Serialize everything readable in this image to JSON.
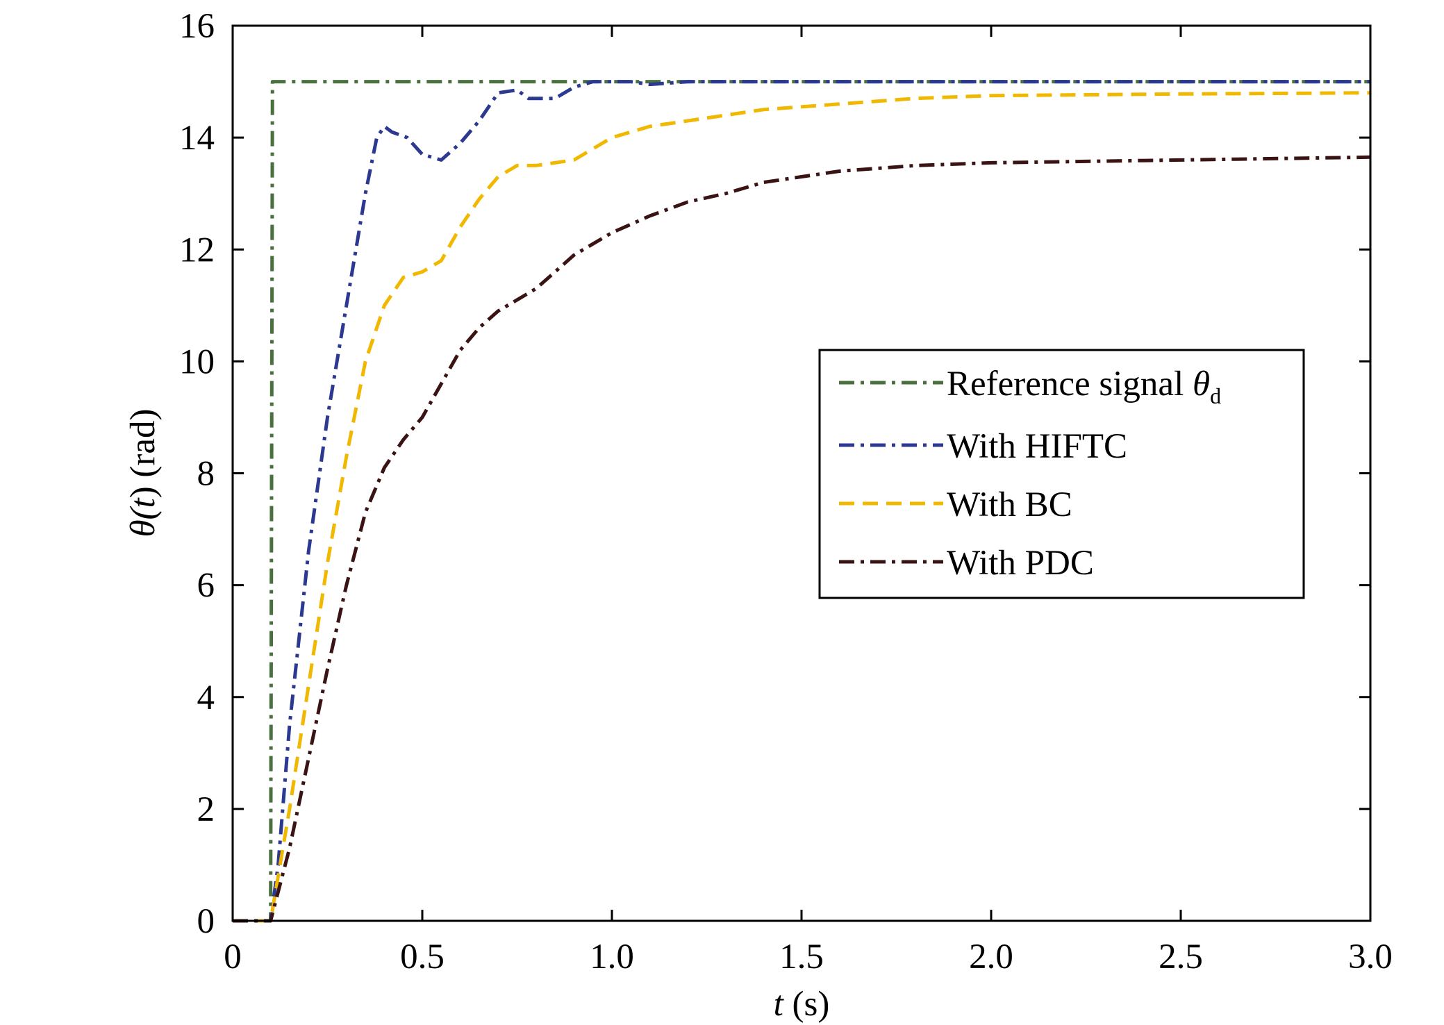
{
  "chart_data": {
    "type": "line",
    "xlabel": {
      "symbol": "t",
      "unit": " (s)"
    },
    "ylabel": {
      "prefix": "θ(",
      "symbol": "t",
      "suffix": ") (rad)"
    },
    "xlim": [
      0,
      3.0
    ],
    "ylim": [
      0,
      16
    ],
    "x_ticks": [
      "0",
      "0.5",
      "1.0",
      "1.5",
      "2.0",
      "2.5",
      "3.0"
    ],
    "y_ticks": [
      "0",
      "2",
      "4",
      "6",
      "8",
      "10",
      "12",
      "14",
      "16"
    ],
    "grid": false,
    "legend_position": "center-right",
    "series": [
      {
        "name": "Reference signal θd",
        "legend_main": "Reference signal θ",
        "legend_sub": "d",
        "color": "#4a7040",
        "dash": "dashdot",
        "points": [
          [
            0,
            0
          ],
          [
            0.1,
            0
          ],
          [
            0.105,
            15
          ],
          [
            3.0,
            15
          ]
        ]
      },
      {
        "name": "With HIFTC",
        "legend_main": "With HIFTC",
        "legend_sub": "",
        "color": "#2b3990",
        "dash": "dashdot",
        "points": [
          [
            0,
            0
          ],
          [
            0.1,
            0
          ],
          [
            0.12,
            1
          ],
          [
            0.15,
            3.5
          ],
          [
            0.2,
            6.6
          ],
          [
            0.25,
            9
          ],
          [
            0.3,
            11
          ],
          [
            0.35,
            13
          ],
          [
            0.38,
            14
          ],
          [
            0.4,
            14.2
          ],
          [
            0.42,
            14.1
          ],
          [
            0.46,
            14.0
          ],
          [
            0.5,
            13.7
          ],
          [
            0.55,
            13.6
          ],
          [
            0.6,
            13.9
          ],
          [
            0.65,
            14.3
          ],
          [
            0.7,
            14.8
          ],
          [
            0.75,
            14.85
          ],
          [
            0.78,
            14.7
          ],
          [
            0.85,
            14.7
          ],
          [
            0.9,
            14.9
          ],
          [
            0.95,
            15.0
          ],
          [
            1.0,
            15.0
          ],
          [
            1.05,
            15.0
          ],
          [
            1.1,
            14.95
          ],
          [
            1.2,
            15.0
          ],
          [
            3.0,
            15.0
          ]
        ]
      },
      {
        "name": "With BC",
        "legend_main": "With BC",
        "legend_sub": "",
        "color": "#f0b800",
        "dash": "dash",
        "points": [
          [
            0,
            0
          ],
          [
            0.1,
            0
          ],
          [
            0.15,
            2
          ],
          [
            0.2,
            4.2
          ],
          [
            0.25,
            6.4
          ],
          [
            0.3,
            8.3
          ],
          [
            0.35,
            10
          ],
          [
            0.4,
            11
          ],
          [
            0.45,
            11.5
          ],
          [
            0.5,
            11.6
          ],
          [
            0.55,
            11.8
          ],
          [
            0.6,
            12.4
          ],
          [
            0.65,
            12.9
          ],
          [
            0.7,
            13.3
          ],
          [
            0.75,
            13.5
          ],
          [
            0.8,
            13.5
          ],
          [
            0.85,
            13.55
          ],
          [
            0.9,
            13.6
          ],
          [
            0.95,
            13.8
          ],
          [
            1.0,
            14.0
          ],
          [
            1.1,
            14.2
          ],
          [
            1.2,
            14.3
          ],
          [
            1.3,
            14.4
          ],
          [
            1.4,
            14.5
          ],
          [
            1.6,
            14.6
          ],
          [
            1.8,
            14.7
          ],
          [
            2.0,
            14.75
          ],
          [
            2.5,
            14.78
          ],
          [
            3.0,
            14.8
          ]
        ]
      },
      {
        "name": "With PDC",
        "legend_main": "With PDC",
        "legend_sub": "",
        "color": "#3a1414",
        "dash": "dashdot",
        "points": [
          [
            0,
            0
          ],
          [
            0.1,
            0
          ],
          [
            0.15,
            1.3
          ],
          [
            0.2,
            2.9
          ],
          [
            0.25,
            4.5
          ],
          [
            0.3,
            6
          ],
          [
            0.35,
            7.3
          ],
          [
            0.4,
            8.1
          ],
          [
            0.45,
            8.6
          ],
          [
            0.5,
            9
          ],
          [
            0.55,
            9.6
          ],
          [
            0.6,
            10.2
          ],
          [
            0.65,
            10.6
          ],
          [
            0.7,
            10.9
          ],
          [
            0.75,
            11.1
          ],
          [
            0.8,
            11.3
          ],
          [
            0.85,
            11.6
          ],
          [
            0.9,
            11.9
          ],
          [
            0.95,
            12.1
          ],
          [
            1.0,
            12.3
          ],
          [
            1.1,
            12.6
          ],
          [
            1.2,
            12.85
          ],
          [
            1.3,
            13.0
          ],
          [
            1.4,
            13.2
          ],
          [
            1.5,
            13.3
          ],
          [
            1.6,
            13.4
          ],
          [
            1.8,
            13.5
          ],
          [
            2.0,
            13.55
          ],
          [
            2.5,
            13.6
          ],
          [
            3.0,
            13.65
          ]
        ]
      }
    ]
  }
}
